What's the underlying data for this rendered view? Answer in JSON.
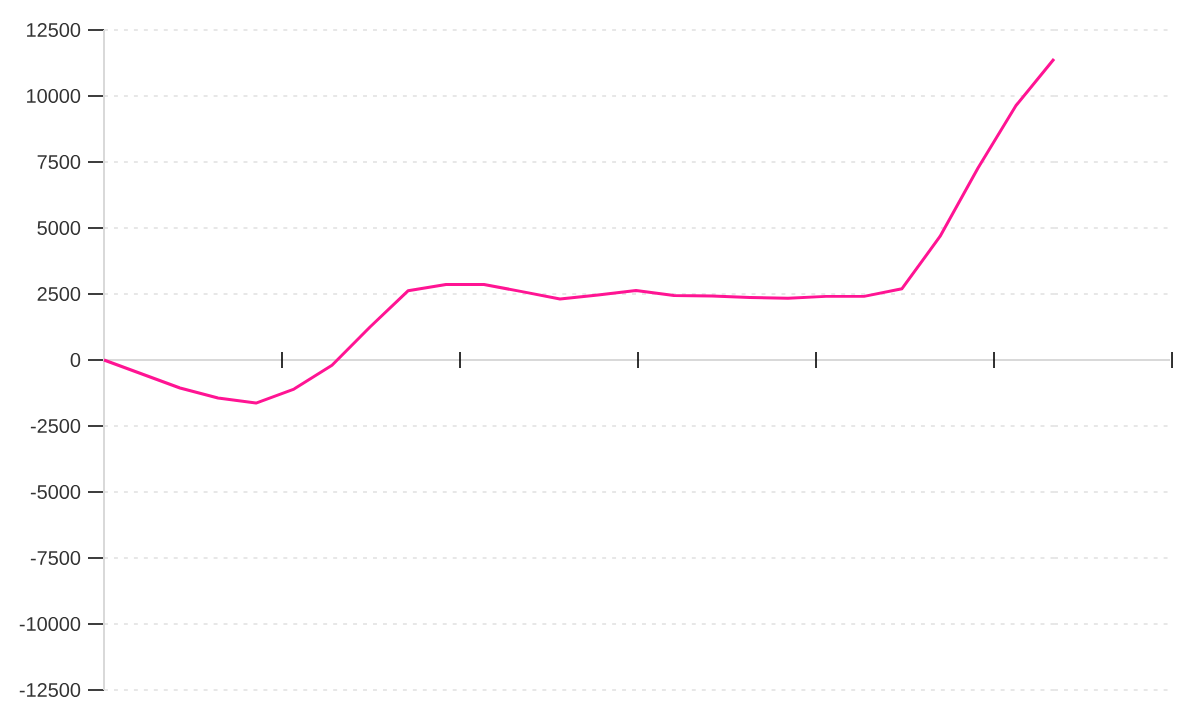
{
  "chart_data": {
    "type": "line",
    "categories": [
      null,
      null,
      null,
      null,
      null,
      null,
      null,
      null,
      null,
      null,
      null,
      null,
      null,
      null,
      null,
      null,
      null,
      null,
      null,
      null,
      null,
      null,
      null,
      null,
      null,
      null
    ],
    "values": [
      0,
      -530,
      -1060,
      -1440,
      -1630,
      -1100,
      -200,
      1250,
      2620,
      2860,
      2860,
      2590,
      2310,
      2460,
      2630,
      2440,
      2420,
      2370,
      2340,
      2410,
      2410,
      2700,
      4680,
      7270,
      9640,
      11400
    ],
    "color": "#ff1493",
    "marker": "none",
    "line_style": "solid",
    "ylim": [
      -12500,
      12500
    ],
    "yticks": [
      -12500,
      -10000,
      -7500,
      -5000,
      -2500,
      0,
      2500,
      5000,
      7500,
      10000,
      12500
    ],
    "grid": "y",
    "tick_labels": "y"
  }
}
